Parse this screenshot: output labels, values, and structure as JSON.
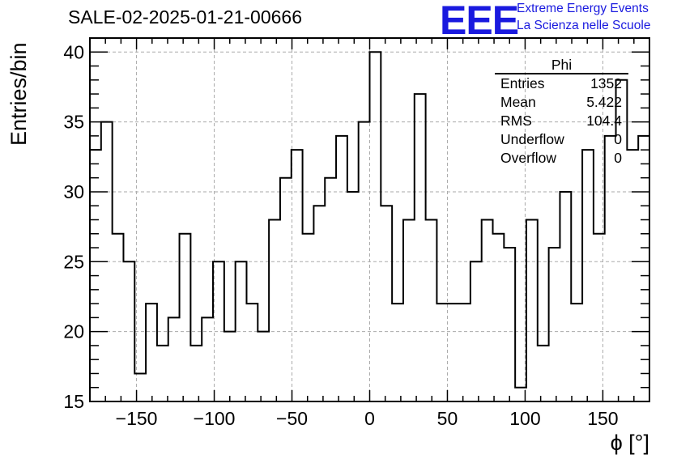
{
  "title": "SALE-02-2025-01-21-00666",
  "logo": {
    "text": "EEE",
    "line1": "Extreme Energy Events",
    "line2": "La Scienza nelle Scuole",
    "color": "#1a1adf"
  },
  "stats_box": {
    "title": "Phi",
    "rows": [
      {
        "label": "Entries",
        "value": "1352"
      },
      {
        "label": "Mean",
        "value": "5.422"
      },
      {
        "label": "RMS",
        "value": "104.4"
      },
      {
        "label": "Underflow",
        "value": "0"
      },
      {
        "label": "Overflow",
        "value": "0"
      }
    ]
  },
  "chart_data": {
    "type": "histogram",
    "xlabel": "ϕ [°]",
    "ylabel": "Entries/bin",
    "xlim": [
      -180,
      180
    ],
    "ylim": [
      15,
      41
    ],
    "bin_width": 7.2,
    "x_ticks": [
      -150,
      -100,
      -50,
      0,
      50,
      100,
      150
    ],
    "x_tick_labels": [
      "−150",
      "−100",
      "−50",
      "0",
      "50",
      "100",
      "150"
    ],
    "y_ticks": [
      15,
      20,
      25,
      30,
      35,
      40
    ],
    "grid": true,
    "line_color": "#000000",
    "values": [
      33,
      35,
      27,
      25,
      17,
      22,
      19,
      21,
      27,
      19,
      21,
      25,
      20,
      25,
      22,
      20,
      28,
      31,
      33,
      27,
      29,
      31,
      34,
      30,
      35,
      40,
      29,
      22,
      28,
      37,
      28,
      22,
      22,
      22,
      25,
      28,
      27,
      26,
      16,
      28,
      19,
      26,
      30,
      22,
      33,
      27,
      34,
      38,
      33,
      34
    ]
  }
}
